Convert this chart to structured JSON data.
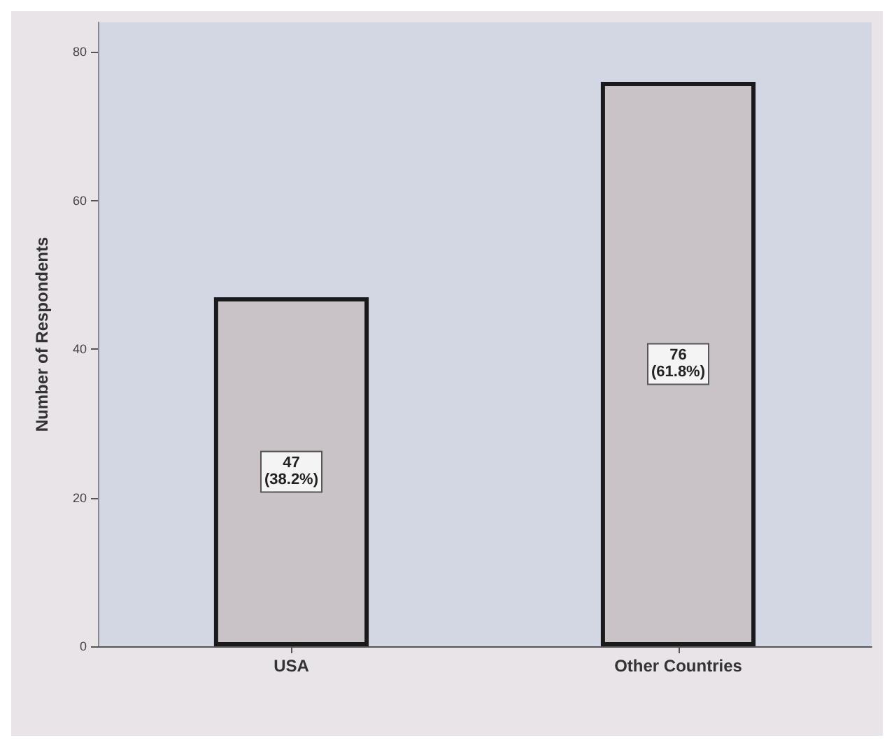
{
  "chart_data": {
    "type": "bar",
    "ylabel": "Number of Respondents",
    "categories": [
      "USA",
      "Other Countries"
    ],
    "values": [
      47,
      76
    ],
    "color": "#c9c2c6",
    "value_labels": [
      "47\n(38.2%)",
      "76\n(61.8%)"
    ],
    "ylim": [
      0,
      84
    ],
    "yticks": [
      0,
      20,
      40,
      60,
      80
    ],
    "grid": false
  }
}
